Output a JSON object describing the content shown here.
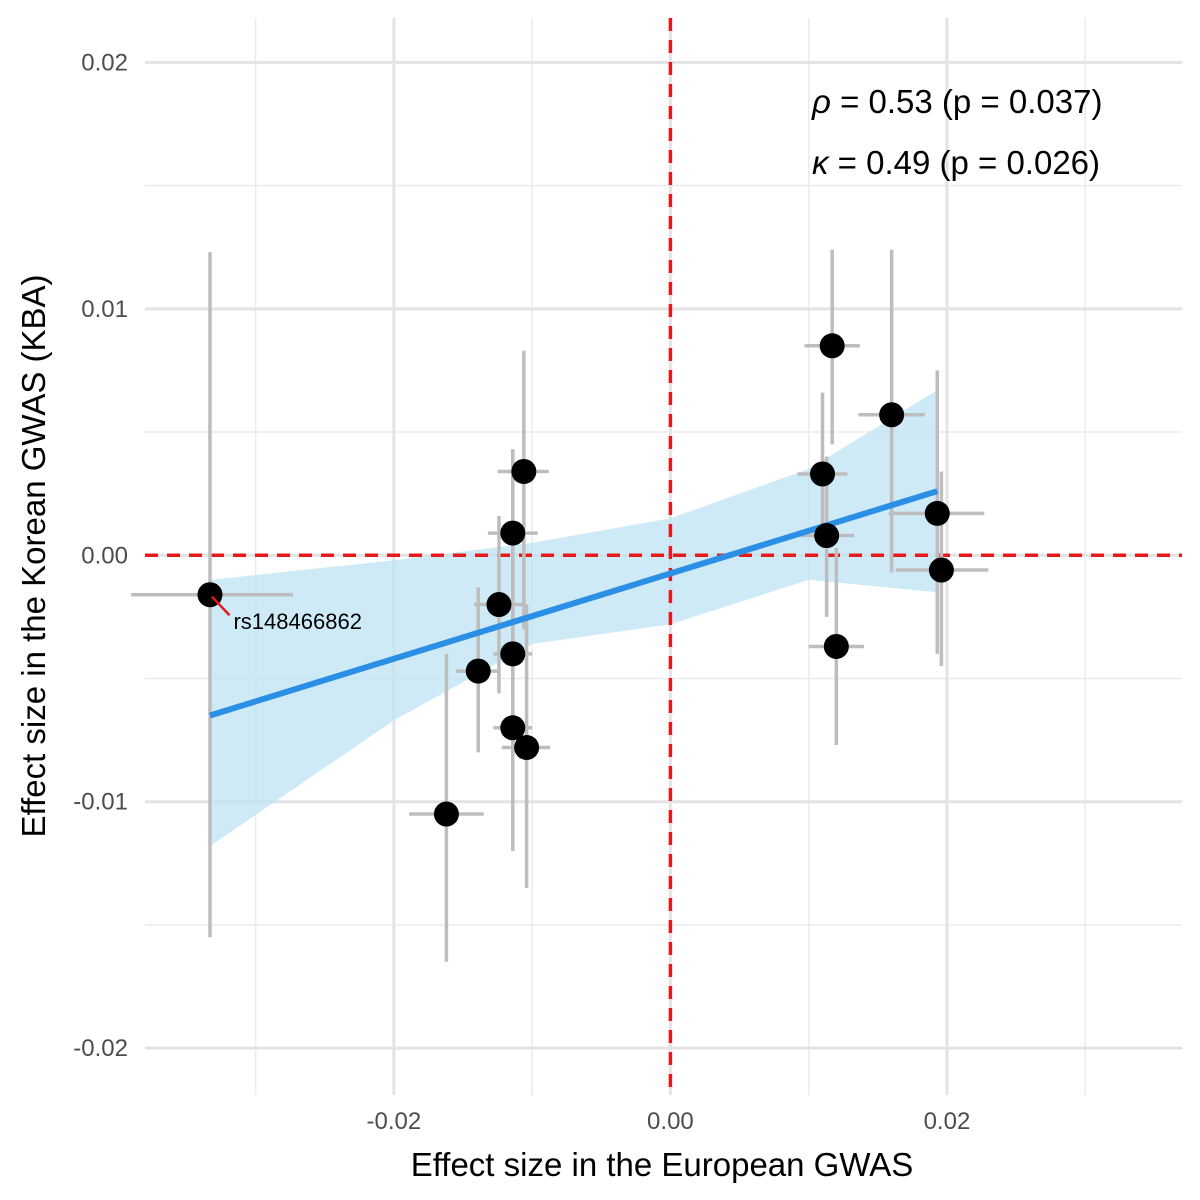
{
  "chart_data": {
    "type": "scatter",
    "title": "",
    "xlabel": "Effect size in the European GWAS",
    "ylabel": "Effect size in the Korean GWAS (KBA)",
    "xlim": [
      -0.038,
      0.037
    ],
    "ylim": [
      -0.0219,
      0.0218
    ],
    "x_ticks": [
      -0.02,
      0.0,
      0.02
    ],
    "x_tick_labels": [
      "-0.02",
      "0.00",
      "0.02"
    ],
    "y_ticks": [
      -0.02,
      -0.01,
      0.0,
      0.01,
      0.02
    ],
    "y_tick_labels": [
      "-0.02",
      "-0.01",
      "0.00",
      "0.01",
      "0.02"
    ],
    "x_minor_grid": [
      -0.03,
      -0.01,
      0.01,
      0.03
    ],
    "y_minor_grid": [
      -0.015,
      -0.005,
      0.005,
      0.015
    ],
    "grid": true,
    "reference_lines": {
      "x": 0.0,
      "y": 0.0,
      "style": "dashed",
      "color": "#e41a1c"
    },
    "points": [
      {
        "x": -0.0333,
        "y": -0.0016,
        "x_lo": -0.039,
        "x_hi": -0.0273,
        "y_lo": -0.0155,
        "y_hi": 0.0123
      },
      {
        "x": -0.0162,
        "y": -0.0105,
        "x_lo": -0.0189,
        "x_hi": -0.0135,
        "y_lo": -0.0165,
        "y_hi": -0.004
      },
      {
        "x": -0.0139,
        "y": -0.0047,
        "x_lo": -0.0155,
        "x_hi": -0.0123,
        "y_lo": -0.008,
        "y_hi": -0.0013
      },
      {
        "x": -0.0124,
        "y": -0.002,
        "x_lo": -0.0142,
        "x_hi": -0.0106,
        "y_lo": -0.0056,
        "y_hi": 0.0016
      },
      {
        "x": -0.0114,
        "y": -0.004,
        "x_lo": -0.0128,
        "x_hi": -0.01,
        "y_lo": -0.006,
        "y_hi": 0.0043
      },
      {
        "x": -0.0114,
        "y": -0.007,
        "x_lo": -0.0128,
        "x_hi": -0.01,
        "y_lo": -0.012,
        "y_hi": -0.002
      },
      {
        "x": -0.0114,
        "y": 0.0009,
        "x_lo": -0.0132,
        "x_hi": -0.0096,
        "y_lo": -0.002,
        "y_hi": 0.0043
      },
      {
        "x": -0.0106,
        "y": 0.0034,
        "x_lo": -0.0125,
        "x_hi": -0.0088,
        "y_lo": -0.003,
        "y_hi": 0.0083
      },
      {
        "x": -0.0104,
        "y": -0.0078,
        "x_lo": -0.0122,
        "x_hi": -0.0087,
        "y_lo": -0.0135,
        "y_hi": -0.002
      },
      {
        "x": 0.011,
        "y": 0.0033,
        "x_lo": 0.0092,
        "x_hi": 0.0128,
        "y_lo": 0.0003,
        "y_hi": 0.0066
      },
      {
        "x": 0.0113,
        "y": 0.0008,
        "x_lo": 0.0094,
        "x_hi": 0.0133,
        "y_lo": -0.0025,
        "y_hi": 0.004
      },
      {
        "x": 0.0117,
        "y": 0.0085,
        "x_lo": 0.0097,
        "x_hi": 0.0137,
        "y_lo": 0.0045,
        "y_hi": 0.0124
      },
      {
        "x": 0.012,
        "y": -0.0037,
        "x_lo": 0.01,
        "x_hi": 0.014,
        "y_lo": -0.0077,
        "y_hi": 0.0003
      },
      {
        "x": 0.016,
        "y": 0.0057,
        "x_lo": 0.0136,
        "x_hi": 0.0184,
        "y_lo": -0.0007,
        "y_hi": 0.0124
      },
      {
        "x": 0.0193,
        "y": 0.0017,
        "x_lo": 0.0158,
        "x_hi": 0.0227,
        "y_lo": -0.004,
        "y_hi": 0.0075
      },
      {
        "x": 0.0196,
        "y": -0.0006,
        "x_lo": 0.0163,
        "x_hi": 0.023,
        "y_lo": -0.0045,
        "y_hi": 0.0034
      }
    ],
    "point_labels": [
      {
        "text": "rs148466862",
        "x": -0.0333,
        "y": -0.0016,
        "label_x": -0.0316,
        "label_y": -0.003
      }
    ],
    "regression": {
      "x": [
        -0.0333,
        0.0193
      ],
      "y": [
        -0.0065,
        0.0026
      ],
      "color": "#2b8fe6",
      "band": {
        "x": [
          -0.0333,
          -0.02,
          -0.01,
          0.0,
          0.01,
          0.0193
        ],
        "upper": [
          -0.001,
          -0.0002,
          0.0005,
          0.0015,
          0.0035,
          0.0067
        ],
        "lower": [
          -0.0118,
          -0.0067,
          -0.0036,
          -0.0028,
          -0.001,
          -0.0015
        ],
        "color": "#bfe3f4"
      }
    },
    "annotations": [
      {
        "symbol": "ρ",
        "text": " = 0.53 (p = 0.037)"
      },
      {
        "symbol": "κ",
        "text": " = 0.49 (p = 0.026)"
      }
    ]
  }
}
